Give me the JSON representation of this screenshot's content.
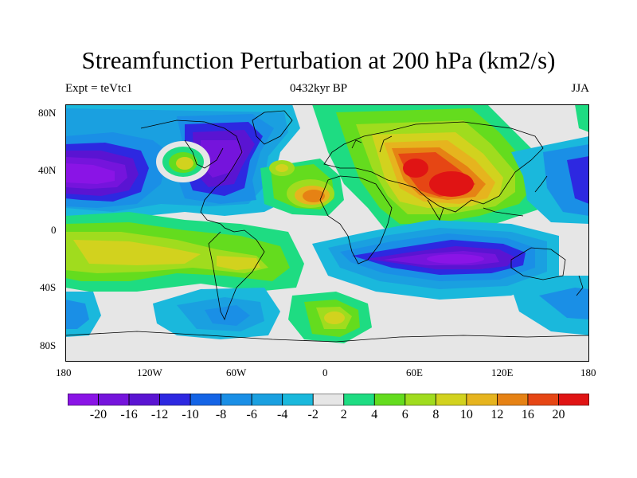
{
  "title": "Streamfunction Perturbation at 200 hPa (km2/s)",
  "subtitle_left": "Expt = teVtc1",
  "subtitle_center": "0432kyr BP",
  "subtitle_right": "JJA",
  "lat_ticks": [
    "80N",
    "40N",
    "0",
    "40S",
    "80S"
  ],
  "lon_ticks": [
    "180",
    "120W",
    "60W",
    "0",
    "60E",
    "120E",
    "180"
  ],
  "colorbar": {
    "colors": [
      "#8a14e6",
      "#7514dc",
      "#5a14d2",
      "#2d28e1",
      "#1464e6",
      "#1a8fe6",
      "#1aa0e0",
      "#1ab8dc",
      "#e6e6e6",
      "#1edc82",
      "#64dc1e",
      "#a0dc1e",
      "#d2d21e",
      "#e6b41e",
      "#e68214",
      "#e64614",
      "#e01414"
    ],
    "labels": [
      "-20",
      "-16",
      "-12",
      "-10",
      "-8",
      "-6",
      "-4",
      "-2",
      "2",
      "4",
      "6",
      "8",
      "10",
      "12",
      "16",
      "20"
    ]
  },
  "map_data": {
    "projection": "cylindrical-equidistant",
    "lon_range": [
      -180,
      180
    ],
    "lat_range": [
      -90,
      90
    ],
    "background_value": "-2 to 2",
    "features": [
      {
        "name": "north-pacific-low",
        "value": -20,
        "lon": -150,
        "lat": 40
      },
      {
        "name": "north-america-low",
        "value": -16,
        "lon": -75,
        "lat": 45
      },
      {
        "name": "central-canada-high",
        "value": 8,
        "lon": -100,
        "lat": 45
      },
      {
        "name": "asia-high",
        "value": 20,
        "lon": 90,
        "lat": 30
      },
      {
        "name": "eurasia-high",
        "value": 16,
        "lon": 65,
        "lat": 50
      },
      {
        "name": "north-africa-high",
        "value": 12,
        "lon": -5,
        "lat": 22
      },
      {
        "name": "south-indian-ocean-low",
        "value": -20,
        "lon": 100,
        "lat": -30
      },
      {
        "name": "south-pacific-band",
        "value": 10,
        "lon": -140,
        "lat": -25
      },
      {
        "name": "south-america-band",
        "value": 8,
        "lon": -65,
        "lat": -25
      },
      {
        "name": "southern-ocean-low",
        "value": -8,
        "lon": -60,
        "lat": -60
      }
    ]
  }
}
